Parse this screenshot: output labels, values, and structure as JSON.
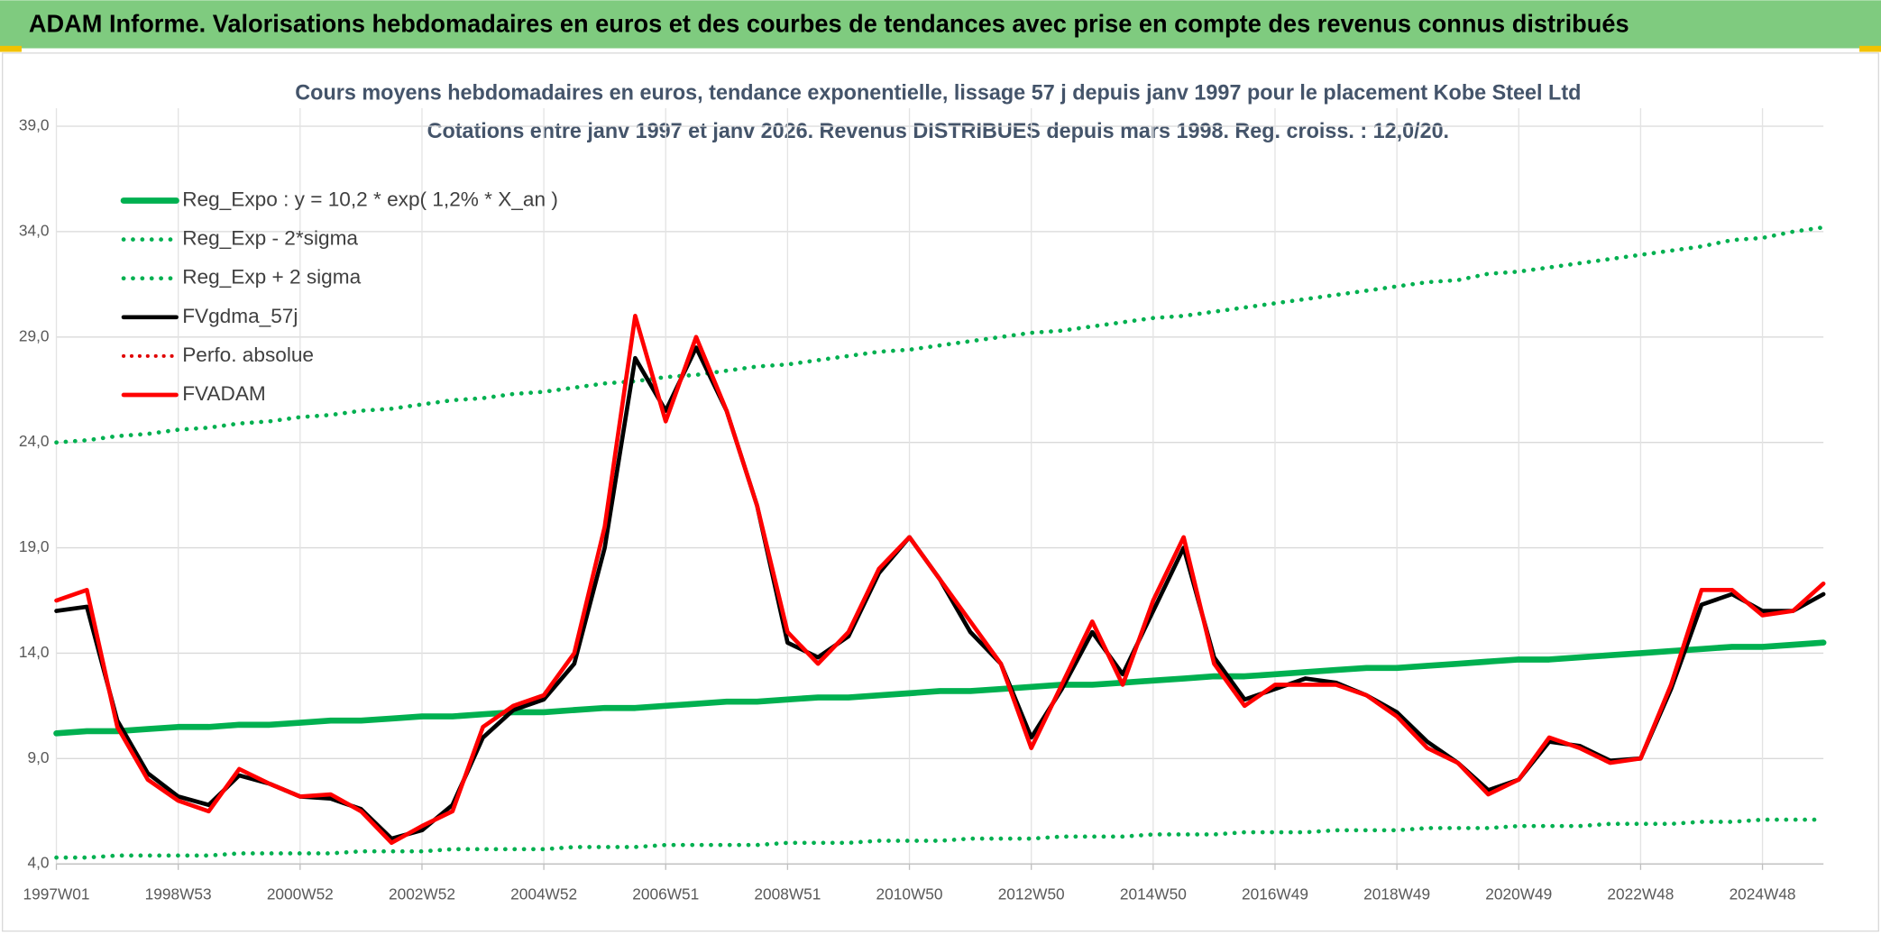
{
  "chart_data": {
    "type": "line",
    "header": "ADAM Informe. Valorisations hebdomadaires en euros et des courbes de tendances avec prise en compte des revenus connus distribués",
    "title": "Cours moyens hebdomadaires en euros, tendance exponentielle, lissage 57 j depuis janv 1997 pour le placement Kobe Steel Ltd",
    "subtitle": "Cotations entre janv 1997 et janv 2026. Revenus DISTRIBUES depuis mars 1998. Reg. croiss. : 12,0/20.",
    "categories": [
      "1997W01",
      null,
      null,
      null,
      "1998W53",
      null,
      null,
      null,
      "2000W52",
      null,
      null,
      null,
      "2002W52",
      null,
      null,
      null,
      "2004W52",
      null,
      null,
      null,
      "2006W51",
      null,
      null,
      null,
      "2008W51",
      null,
      null,
      null,
      "2010W50",
      null,
      null,
      null,
      "2012W50",
      null,
      null,
      null,
      "2014W50",
      null,
      null,
      null,
      "2016W49",
      null,
      null,
      null,
      "2018W49",
      null,
      null,
      null,
      "2020W49",
      null,
      null,
      null,
      "2022W48",
      null,
      null,
      null,
      "2024W48",
      null,
      null
    ],
    "ylim": [
      4,
      39
    ],
    "yticks": [
      {
        "value": 4,
        "label": "4,0"
      },
      {
        "value": 9,
        "label": "9,0"
      },
      {
        "value": 14,
        "label": "14,0"
      },
      {
        "value": 19,
        "label": "19,0"
      },
      {
        "value": 24,
        "label": "24,0"
      },
      {
        "value": 29,
        "label": "29,0"
      },
      {
        "value": 34,
        "label": "34,0"
      },
      {
        "value": 39,
        "label": "39,0"
      }
    ],
    "grid": true,
    "legend": "upper-left",
    "series": [
      {
        "name": "Reg_Expo : y = 10,2 * exp( 1,2% *  X_an )",
        "color": "#00b050",
        "style": "solid",
        "linewidth": 5,
        "values": [
          10.2,
          10.3,
          10.3,
          10.4,
          10.5,
          10.5,
          10.6,
          10.6,
          10.7,
          10.8,
          10.8,
          10.9,
          11.0,
          11.0,
          11.1,
          11.2,
          11.2,
          11.3,
          11.4,
          11.4,
          11.5,
          11.6,
          11.7,
          11.7,
          11.8,
          11.9,
          11.9,
          12.0,
          12.1,
          12.2,
          12.2,
          12.3,
          12.4,
          12.5,
          12.5,
          12.6,
          12.7,
          12.8,
          12.9,
          12.9,
          13.0,
          13.1,
          13.2,
          13.3,
          13.3,
          13.4,
          13.5,
          13.6,
          13.7,
          13.7,
          13.8,
          13.9,
          14.0,
          14.1,
          14.2,
          14.3,
          14.3,
          14.4,
          14.5
        ]
      },
      {
        "name": "Reg_Exp - 2*sigma",
        "color": "#00b050",
        "style": "dotted",
        "linewidth": 3.5,
        "values": [
          4.3,
          4.3,
          4.4,
          4.4,
          4.4,
          4.4,
          4.5,
          4.5,
          4.5,
          4.5,
          4.6,
          4.6,
          4.6,
          4.7,
          4.7,
          4.7,
          4.7,
          4.8,
          4.8,
          4.8,
          4.9,
          4.9,
          4.9,
          4.9,
          5.0,
          5.0,
          5.0,
          5.1,
          5.1,
          5.1,
          5.2,
          5.2,
          5.2,
          5.3,
          5.3,
          5.3,
          5.4,
          5.4,
          5.4,
          5.5,
          5.5,
          5.5,
          5.6,
          5.6,
          5.6,
          5.7,
          5.7,
          5.7,
          5.8,
          5.8,
          5.8,
          5.9,
          5.9,
          5.9,
          6.0,
          6.0,
          6.1,
          6.1,
          6.1
        ]
      },
      {
        "name": "Reg_Exp + 2 sigma",
        "color": "#00b050",
        "style": "dotted",
        "linewidth": 3.5,
        "values": [
          24.0,
          24.1,
          24.3,
          24.4,
          24.6,
          24.7,
          24.9,
          25.0,
          25.2,
          25.3,
          25.5,
          25.6,
          25.8,
          26.0,
          26.1,
          26.3,
          26.4,
          26.6,
          26.8,
          26.9,
          27.1,
          27.2,
          27.4,
          27.6,
          27.7,
          27.9,
          28.1,
          28.3,
          28.4,
          28.6,
          28.8,
          29.0,
          29.2,
          29.3,
          29.5,
          29.7,
          29.9,
          30.0,
          30.2,
          30.4,
          30.6,
          30.8,
          31.0,
          31.2,
          31.4,
          31.6,
          31.7,
          32.0,
          32.1,
          32.3,
          32.5,
          32.7,
          32.9,
          33.1,
          33.3,
          33.6,
          33.7,
          34.0,
          34.2
        ]
      },
      {
        "name": "FVgdma_57j",
        "color": "#000000",
        "style": "solid",
        "linewidth": 3.5,
        "values": [
          16.0,
          16.2,
          10.8,
          8.3,
          7.2,
          6.8,
          8.2,
          7.8,
          7.2,
          7.1,
          6.6,
          5.2,
          5.6,
          6.8,
          10.0,
          11.3,
          11.8,
          13.5,
          19.0,
          28.0,
          25.5,
          28.5,
          25.5,
          21.0,
          14.5,
          13.8,
          14.8,
          17.8,
          19.5,
          17.5,
          15.0,
          13.5,
          10.0,
          12.3,
          15.0,
          13.0,
          16.0,
          19.0,
          13.8,
          11.8,
          12.3,
          12.8,
          12.6,
          12.0,
          11.2,
          9.8,
          8.8,
          7.5,
          8.0,
          9.8,
          9.6,
          8.9,
          9.0,
          12.3,
          16.3,
          16.8,
          16.0,
          16.0,
          16.8
        ]
      },
      {
        "name": "Perfo. absolue",
        "color": "#e00000",
        "style": "dotted",
        "linewidth": 3,
        "values": [
          null,
          null,
          null,
          null,
          null,
          null,
          null,
          null,
          null,
          null,
          null,
          null,
          null,
          null,
          null,
          null,
          null,
          null,
          null,
          null,
          null,
          null,
          null,
          null,
          null,
          null,
          null,
          null,
          null,
          null,
          null,
          null,
          null,
          null,
          null,
          null,
          null,
          null,
          null,
          null,
          null,
          null,
          null,
          null,
          null,
          null,
          null,
          null,
          null,
          null,
          null,
          null,
          null,
          null,
          null,
          null,
          null,
          null,
          null
        ]
      },
      {
        "name": "FVADAM",
        "color": "#ff0000",
        "style": "solid",
        "linewidth": 3.5,
        "values": [
          16.5,
          17.0,
          10.5,
          8.0,
          7.0,
          6.5,
          8.5,
          7.8,
          7.2,
          7.3,
          6.5,
          5.0,
          5.8,
          6.5,
          10.5,
          11.5,
          12.0,
          14.0,
          20.0,
          30.0,
          25.0,
          29.0,
          25.5,
          21.0,
          15.0,
          13.5,
          15.0,
          18.0,
          19.5,
          17.5,
          15.5,
          13.5,
          9.5,
          12.5,
          15.5,
          12.5,
          16.5,
          19.5,
          13.5,
          11.5,
          12.5,
          12.5,
          12.5,
          12.0,
          11.0,
          9.5,
          8.8,
          7.3,
          8.0,
          10.0,
          9.5,
          8.8,
          9.0,
          12.5,
          17.0,
          17.0,
          15.8,
          16.0,
          17.3
        ]
      }
    ]
  }
}
